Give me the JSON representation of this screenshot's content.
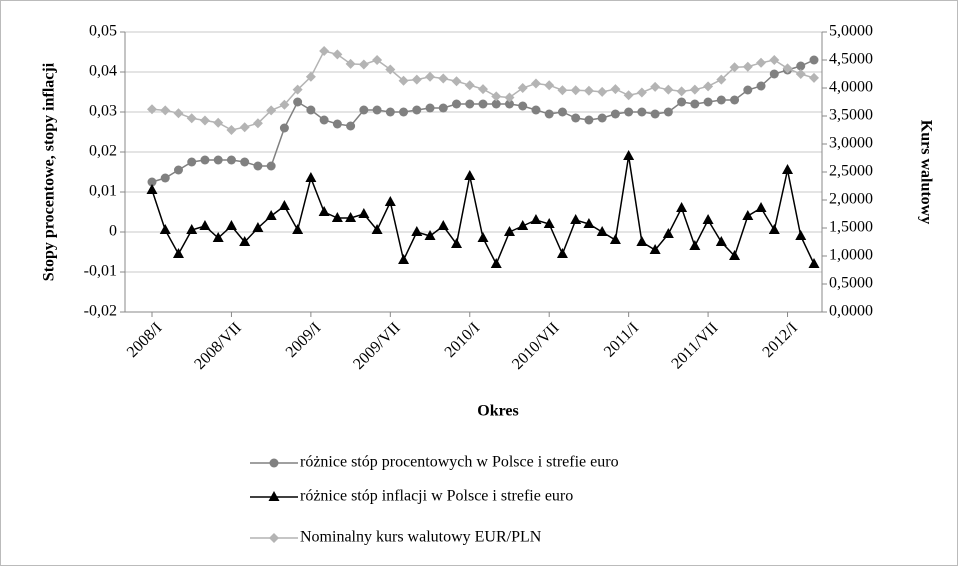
{
  "chart_data": {
    "type": "line",
    "x_label": "Okres",
    "y_label": "Stopy procentowe, stopy inflacji",
    "y2_label": "Kurs walutowy",
    "categories": [
      "2008/I",
      null,
      null,
      null,
      null,
      null,
      "2008/VII",
      null,
      null,
      null,
      null,
      null,
      "2009/I",
      null,
      null,
      null,
      null,
      null,
      "2009/VII",
      null,
      null,
      null,
      null,
      null,
      "2010/I",
      null,
      null,
      null,
      null,
      null,
      "2010/VII",
      null,
      null,
      null,
      null,
      null,
      "2011/I",
      null,
      null,
      null,
      null,
      null,
      "2011/VII",
      null,
      null,
      null,
      null,
      null,
      "2012/I",
      null,
      null
    ],
    "ylim": [
      -0.02,
      0.05
    ],
    "yticks": [
      {
        "value": -0.02,
        "label": "-0,02"
      },
      {
        "value": -0.01,
        "label": "-0,01"
      },
      0,
      {
        "value": 0.01,
        "label": "0,01"
      },
      {
        "value": 0.02,
        "label": "0,02"
      },
      {
        "value": 0.03,
        "label": "0,03"
      },
      {
        "value": 0.04,
        "label": "0,04"
      },
      {
        "value": 0.05,
        "label": "0,05"
      }
    ],
    "y2lim": [
      0,
      5
    ],
    "y2ticks": [
      {
        "value": 0,
        "label": "0,0000"
      },
      {
        "value": 0.5,
        "label": "0,5000"
      },
      {
        "value": 1,
        "label": "1,0000"
      },
      {
        "value": 1.5,
        "label": "1,5000"
      },
      {
        "value": 2,
        "label": "2,0000"
      },
      {
        "value": 2.5,
        "label": "2,5000"
      },
      {
        "value": 3,
        "label": "3,0000"
      },
      {
        "value": 3.5,
        "label": "3,5000"
      },
      {
        "value": 4,
        "label": "4,0000"
      },
      {
        "value": 4.5,
        "label": "4,5000"
      },
      {
        "value": 5,
        "label": "5,0000"
      }
    ],
    "grid": true,
    "series": [
      {
        "name": " różnice stóp procentowych w Polsce i strefie euro",
        "color": "#808080",
        "marker": "circle",
        "values": [
          0.0125,
          0.0135,
          0.0155,
          0.0175,
          0.018,
          0.018,
          0.018,
          0.0175,
          0.0165,
          0.0165,
          0.026,
          0.0325,
          0.0305,
          0.028,
          0.027,
          0.0265,
          0.0305,
          0.0305,
          0.03,
          0.03,
          0.0305,
          0.031,
          0.031,
          0.032,
          0.032,
          0.032,
          0.032,
          0.032,
          0.0315,
          0.0305,
          0.0295,
          0.03,
          0.0285,
          0.028,
          0.0285,
          0.0295,
          0.03,
          0.03,
          0.0295,
          0.03,
          0.0325,
          0.032,
          0.0325,
          0.033,
          0.033,
          0.0355,
          0.0365,
          0.0395,
          0.0405,
          0.0415,
          0.043
        ]
      },
      {
        "name": "różnice stóp inflacji w Polsce i strefie euro",
        "color": "#000000",
        "marker": "triangle",
        "values": [
          0.0105,
          0.0005,
          -0.0055,
          0.0005,
          0.0015,
          -0.0015,
          0.0015,
          -0.0025,
          0.001,
          0.004,
          0.0065,
          0.0005,
          0.0135,
          0.005,
          0.0035,
          0.0035,
          0.0045,
          0.0005,
          0.0075,
          -0.007,
          0.0,
          -0.001,
          0.0015,
          -0.003,
          0.014,
          -0.0015,
          -0.008,
          0.0,
          0.0015,
          0.003,
          0.002,
          -0.0055,
          0.003,
          0.002,
          0.0,
          -0.002,
          0.019,
          -0.0025,
          -0.0045,
          -0.0005,
          0.006,
          -0.0035,
          0.003,
          -0.0025,
          -0.006,
          0.004,
          0.006,
          0.0005,
          0.0155,
          -0.001,
          -0.008
        ]
      },
      {
        "name": "Nominalny kurs walutowy EUR/PLN",
        "color": "#b4b4b4",
        "marker": "diamond",
        "axis": "y2",
        "values": [
          3.62,
          3.6,
          3.55,
          3.46,
          3.42,
          3.38,
          3.25,
          3.3,
          3.37,
          3.6,
          3.7,
          3.97,
          4.2,
          4.66,
          4.6,
          4.43,
          4.42,
          4.5,
          4.33,
          4.13,
          4.15,
          4.2,
          4.17,
          4.12,
          4.05,
          3.98,
          3.85,
          3.83,
          4.0,
          4.08,
          4.05,
          3.96,
          3.96,
          3.95,
          3.93,
          3.98,
          3.87,
          3.92,
          4.02,
          3.97,
          3.94,
          3.97,
          4.03,
          4.15,
          4.37,
          4.38,
          4.45,
          4.5,
          4.35,
          4.25,
          4.18
        ]
      }
    ]
  }
}
